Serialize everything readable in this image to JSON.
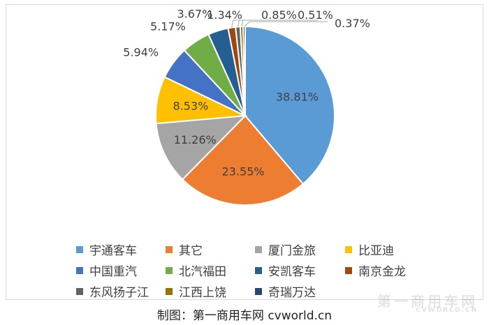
{
  "chart_data": {
    "type": "pie",
    "series": [
      {
        "name": "宇通客车",
        "value": 38.81,
        "label": "38.81%",
        "color": "#5B9BD5"
      },
      {
        "name": "其它",
        "value": 23.55,
        "label": "23.55%",
        "color": "#ED7D31"
      },
      {
        "name": "厦门金旅",
        "value": 11.26,
        "label": "11.26%",
        "color": "#A5A5A5"
      },
      {
        "name": "比亚迪",
        "value": 8.53,
        "label": "8.53%",
        "color": "#FFC000"
      },
      {
        "name": "中国重汽",
        "value": 5.94,
        "label": "5.94%",
        "color": "#4472C4"
      },
      {
        "name": "北汽福田",
        "value": 5.17,
        "label": "5.17%",
        "color": "#70AD47"
      },
      {
        "name": "安凯客车",
        "value": 3.67,
        "label": "3.67%",
        "color": "#255E91"
      },
      {
        "name": "南京金龙",
        "value": 1.34,
        "label": "1.34%",
        "color": "#9E480E"
      },
      {
        "name": "东风扬子江",
        "value": 0.85,
        "label": "0.85%",
        "color": "#636363"
      },
      {
        "name": "江西上饶",
        "value": 0.51,
        "label": "0.51%",
        "color": "#997300"
      },
      {
        "name": "奇瑞万达",
        "value": 0.37,
        "label": "0.37%",
        "color": "#264478"
      }
    ],
    "legend_position": "bottom"
  },
  "footer": {
    "caption": "制图：第一商用车网 cvworld.cn"
  },
  "watermark": {
    "text": "第一商用车网",
    "subtext": "CVWORLD.CN"
  }
}
